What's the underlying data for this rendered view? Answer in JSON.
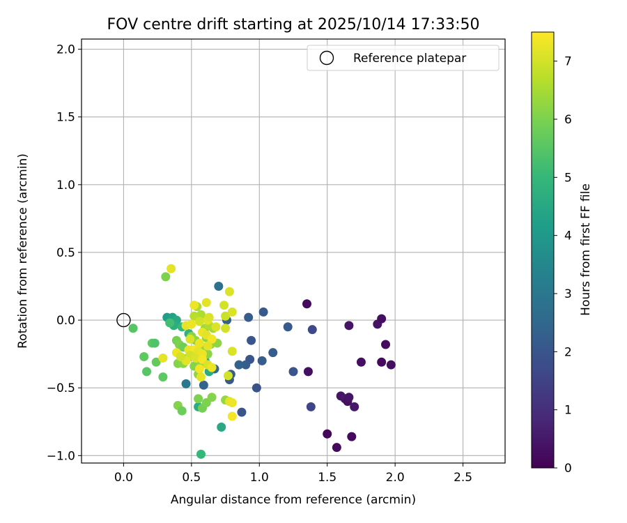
{
  "chart_data": {
    "type": "scatter",
    "title": "FOV centre drift starting at 2025/10/14 17:33:50",
    "xlabel": "Angular distance from reference (arcmin)",
    "ylabel": "Rotation from reference (arcmin)",
    "xlim": [
      -0.31,
      2.81
    ],
    "ylim": [
      -1.055,
      2.075
    ],
    "xticks": [
      0.0,
      0.5,
      1.0,
      1.5,
      2.0,
      2.5
    ],
    "xtick_labels": [
      "0.0",
      "0.5",
      "1.0",
      "1.5",
      "2.0",
      "2.5"
    ],
    "yticks": [
      -1.0,
      -0.5,
      0.0,
      0.5,
      1.0,
      1.5,
      2.0
    ],
    "ytick_labels": [
      "−1.0",
      "−0.5",
      "0.0",
      "0.5",
      "1.0",
      "1.5",
      "2.0"
    ],
    "grid": true,
    "legend": {
      "position": "top-right",
      "entries": [
        "Reference platepar"
      ]
    },
    "reference_point": {
      "x": 0.0,
      "y": 0.0,
      "label": "Reference platepar"
    },
    "colorbar": {
      "label": "Hours from first FF file",
      "range": [
        0,
        7.5
      ],
      "ticks": [
        0,
        1,
        2,
        3,
        4,
        5,
        6,
        7
      ],
      "tick_labels": [
        "0",
        "1",
        "2",
        "3",
        "4",
        "5",
        "6",
        "7"
      ],
      "colormap": [
        "#440154",
        "#482878",
        "#3e4989",
        "#31688e",
        "#26828e",
        "#1f9e89",
        "#35b779",
        "#6ece58",
        "#b5de2b",
        "#fde725"
      ]
    },
    "points": [
      {
        "x": 1.35,
        "y": 0.12,
        "c": 0.2
      },
      {
        "x": 1.36,
        "y": -0.38,
        "c": 0.3
      },
      {
        "x": 1.5,
        "y": -0.84,
        "c": 0.1
      },
      {
        "x": 1.57,
        "y": -0.94,
        "c": 0.2
      },
      {
        "x": 1.6,
        "y": -0.56,
        "c": 0.4
      },
      {
        "x": 1.63,
        "y": -0.58,
        "c": 0.5
      },
      {
        "x": 1.65,
        "y": -0.6,
        "c": 0.3
      },
      {
        "x": 1.66,
        "y": -0.57,
        "c": 0.4
      },
      {
        "x": 1.66,
        "y": -0.04,
        "c": 0.4
      },
      {
        "x": 1.68,
        "y": -0.86,
        "c": 0.2
      },
      {
        "x": 1.7,
        "y": -0.64,
        "c": 0.5
      },
      {
        "x": 1.75,
        "y": -0.31,
        "c": 0.3
      },
      {
        "x": 1.87,
        "y": -0.03,
        "c": 0.4
      },
      {
        "x": 1.9,
        "y": 0.01,
        "c": 0.3
      },
      {
        "x": 1.9,
        "y": -0.31,
        "c": 0.2
      },
      {
        "x": 1.93,
        "y": -0.18,
        "c": 0.2
      },
      {
        "x": 1.97,
        "y": -0.33,
        "c": 0.3
      },
      {
        "x": 1.38,
        "y": -0.64,
        "c": 1.6
      },
      {
        "x": 1.39,
        "y": -0.07,
        "c": 1.7
      },
      {
        "x": 1.25,
        "y": -0.38,
        "c": 2.0
      },
      {
        "x": 1.21,
        "y": -0.05,
        "c": 2.1
      },
      {
        "x": 1.1,
        "y": -0.24,
        "c": 2.2
      },
      {
        "x": 1.03,
        "y": 0.06,
        "c": 2.1
      },
      {
        "x": 1.02,
        "y": -0.3,
        "c": 2.2
      },
      {
        "x": 0.98,
        "y": -0.5,
        "c": 1.9
      },
      {
        "x": 0.94,
        "y": -0.15,
        "c": 2.0
      },
      {
        "x": 0.93,
        "y": -0.29,
        "c": 2.0
      },
      {
        "x": 0.92,
        "y": 0.02,
        "c": 2.2
      },
      {
        "x": 0.9,
        "y": -0.33,
        "c": 2.2
      },
      {
        "x": 0.87,
        "y": -0.68,
        "c": 2.0
      },
      {
        "x": 0.85,
        "y": -0.33,
        "c": 2.3
      },
      {
        "x": 0.78,
        "y": -0.44,
        "c": 2.1
      },
      {
        "x": 0.79,
        "y": -0.4,
        "c": 2.2
      },
      {
        "x": 0.76,
        "y": 0.0,
        "c": 2.3
      },
      {
        "x": 0.7,
        "y": 0.25,
        "c": 2.8
      },
      {
        "x": 0.59,
        "y": -0.48,
        "c": 2.4
      },
      {
        "x": 0.46,
        "y": -0.47,
        "c": 3.0
      },
      {
        "x": 0.67,
        "y": -0.36,
        "c": 2.6
      },
      {
        "x": 0.72,
        "y": -0.79,
        "c": 4.5
      },
      {
        "x": 0.57,
        "y": -0.99,
        "c": 5.0
      },
      {
        "x": 0.55,
        "y": -0.64,
        "c": 4.6
      },
      {
        "x": 0.32,
        "y": 0.02,
        "c": 4.2
      },
      {
        "x": 0.36,
        "y": 0.02,
        "c": 4.3
      },
      {
        "x": 0.39,
        "y": 0.0,
        "c": 4.5
      },
      {
        "x": 0.37,
        "y": -0.04,
        "c": 4.7
      },
      {
        "x": 0.34,
        "y": -0.02,
        "c": 5.2
      },
      {
        "x": 0.43,
        "y": -0.05,
        "c": 5.0
      },
      {
        "x": 0.48,
        "y": -0.1,
        "c": 4.8
      },
      {
        "x": 0.6,
        "y": -0.3,
        "c": 4.9
      },
      {
        "x": 0.63,
        "y": -0.38,
        "c": 4.6
      },
      {
        "x": 0.5,
        "y": -0.25,
        "c": 5.2
      },
      {
        "x": 0.07,
        "y": -0.06,
        "c": 5.5
      },
      {
        "x": 0.15,
        "y": -0.27,
        "c": 5.6
      },
      {
        "x": 0.17,
        "y": -0.38,
        "c": 5.5
      },
      {
        "x": 0.21,
        "y": -0.17,
        "c": 5.6
      },
      {
        "x": 0.23,
        "y": -0.17,
        "c": 5.4
      },
      {
        "x": 0.24,
        "y": -0.31,
        "c": 5.7
      },
      {
        "x": 0.29,
        "y": -0.42,
        "c": 5.6
      },
      {
        "x": 0.31,
        "y": 0.32,
        "c": 6.0
      },
      {
        "x": 0.4,
        "y": -0.63,
        "c": 6.1
      },
      {
        "x": 0.43,
        "y": -0.67,
        "c": 5.8
      },
      {
        "x": 0.55,
        "y": -0.58,
        "c": 6.0
      },
      {
        "x": 0.58,
        "y": -0.65,
        "c": 5.9
      },
      {
        "x": 0.61,
        "y": -0.61,
        "c": 6.0
      },
      {
        "x": 0.65,
        "y": -0.57,
        "c": 6.1
      },
      {
        "x": 0.75,
        "y": -0.59,
        "c": 6.3
      },
      {
        "x": 0.39,
        "y": -0.15,
        "c": 5.9
      },
      {
        "x": 0.41,
        "y": -0.18,
        "c": 6.0
      },
      {
        "x": 0.44,
        "y": -0.2,
        "c": 5.8
      },
      {
        "x": 0.4,
        "y": -0.32,
        "c": 6.1
      },
      {
        "x": 0.44,
        "y": -0.32,
        "c": 6.2
      },
      {
        "x": 0.47,
        "y": -0.28,
        "c": 6.3
      },
      {
        "x": 0.5,
        "y": -0.12,
        "c": 6.1
      },
      {
        "x": 0.53,
        "y": -0.15,
        "c": 6.2
      },
      {
        "x": 0.56,
        "y": -0.18,
        "c": 6.4
      },
      {
        "x": 0.58,
        "y": -0.22,
        "c": 6.3
      },
      {
        "x": 0.61,
        "y": -0.13,
        "c": 6.1
      },
      {
        "x": 0.62,
        "y": -0.25,
        "c": 6.2
      },
      {
        "x": 0.64,
        "y": -0.18,
        "c": 6.3
      },
      {
        "x": 0.66,
        "y": -0.06,
        "c": 6.4
      },
      {
        "x": 0.69,
        "y": -0.17,
        "c": 6.2
      },
      {
        "x": 0.52,
        "y": -0.34,
        "c": 6.1
      },
      {
        "x": 0.55,
        "y": -0.4,
        "c": 6.2
      },
      {
        "x": 0.57,
        "y": -0.33,
        "c": 6.3
      },
      {
        "x": 0.54,
        "y": 0.1,
        "c": 6.5
      },
      {
        "x": 0.57,
        "y": 0.04,
        "c": 6.6
      },
      {
        "x": 0.6,
        "y": -0.06,
        "c": 6.4
      },
      {
        "x": 0.63,
        "y": -0.04,
        "c": 6.6
      },
      {
        "x": 0.52,
        "y": 0.03,
        "c": 6.7
      },
      {
        "x": 0.35,
        "y": 0.38,
        "c": 7.2
      },
      {
        "x": 0.78,
        "y": 0.21,
        "c": 7.1
      },
      {
        "x": 0.61,
        "y": 0.13,
        "c": 7.2
      },
      {
        "x": 0.52,
        "y": 0.11,
        "c": 7.3
      },
      {
        "x": 0.74,
        "y": 0.11,
        "c": 7.0
      },
      {
        "x": 0.75,
        "y": 0.03,
        "c": 6.9
      },
      {
        "x": 0.8,
        "y": 0.06,
        "c": 7.1
      },
      {
        "x": 0.62,
        "y": 0.0,
        "c": 7.2
      },
      {
        "x": 0.63,
        "y": 0.02,
        "c": 7.1
      },
      {
        "x": 0.56,
        "y": -0.01,
        "c": 7.0
      },
      {
        "x": 0.46,
        "y": -0.04,
        "c": 7.2
      },
      {
        "x": 0.5,
        "y": -0.03,
        "c": 7.3
      },
      {
        "x": 0.68,
        "y": -0.05,
        "c": 7.1
      },
      {
        "x": 0.75,
        "y": -0.06,
        "c": 7.0
      },
      {
        "x": 0.58,
        "y": -0.09,
        "c": 7.3
      },
      {
        "x": 0.61,
        "y": -0.11,
        "c": 7.2
      },
      {
        "x": 0.49,
        "y": -0.14,
        "c": 7.1
      },
      {
        "x": 0.65,
        "y": -0.14,
        "c": 7.4
      },
      {
        "x": 0.56,
        "y": -0.17,
        "c": 7.3
      },
      {
        "x": 0.62,
        "y": -0.19,
        "c": 7.2
      },
      {
        "x": 0.48,
        "y": -0.22,
        "c": 7.3
      },
      {
        "x": 0.52,
        "y": -0.22,
        "c": 7.4
      },
      {
        "x": 0.55,
        "y": -0.23,
        "c": 7.2
      },
      {
        "x": 0.58,
        "y": -0.25,
        "c": 7.3
      },
      {
        "x": 0.49,
        "y": -0.26,
        "c": 7.0
      },
      {
        "x": 0.53,
        "y": -0.28,
        "c": 7.1
      },
      {
        "x": 0.58,
        "y": -0.29,
        "c": 7.4
      },
      {
        "x": 0.46,
        "y": -0.3,
        "c": 7.2
      },
      {
        "x": 0.62,
        "y": -0.33,
        "c": 7.1
      },
      {
        "x": 0.65,
        "y": -0.35,
        "c": 7.3
      },
      {
        "x": 0.56,
        "y": -0.36,
        "c": 7.4
      },
      {
        "x": 0.57,
        "y": -0.42,
        "c": 7.2
      },
      {
        "x": 0.39,
        "y": -0.24,
        "c": 7.3
      },
      {
        "x": 0.42,
        "y": -0.27,
        "c": 7.0
      },
      {
        "x": 0.29,
        "y": -0.28,
        "c": 7.2
      },
      {
        "x": 0.8,
        "y": -0.23,
        "c": 7.1
      },
      {
        "x": 0.77,
        "y": -0.41,
        "c": 7.0
      },
      {
        "x": 0.78,
        "y": -0.6,
        "c": 7.2
      },
      {
        "x": 0.8,
        "y": -0.61,
        "c": 7.3
      },
      {
        "x": 0.8,
        "y": -0.71,
        "c": 7.4
      }
    ]
  }
}
